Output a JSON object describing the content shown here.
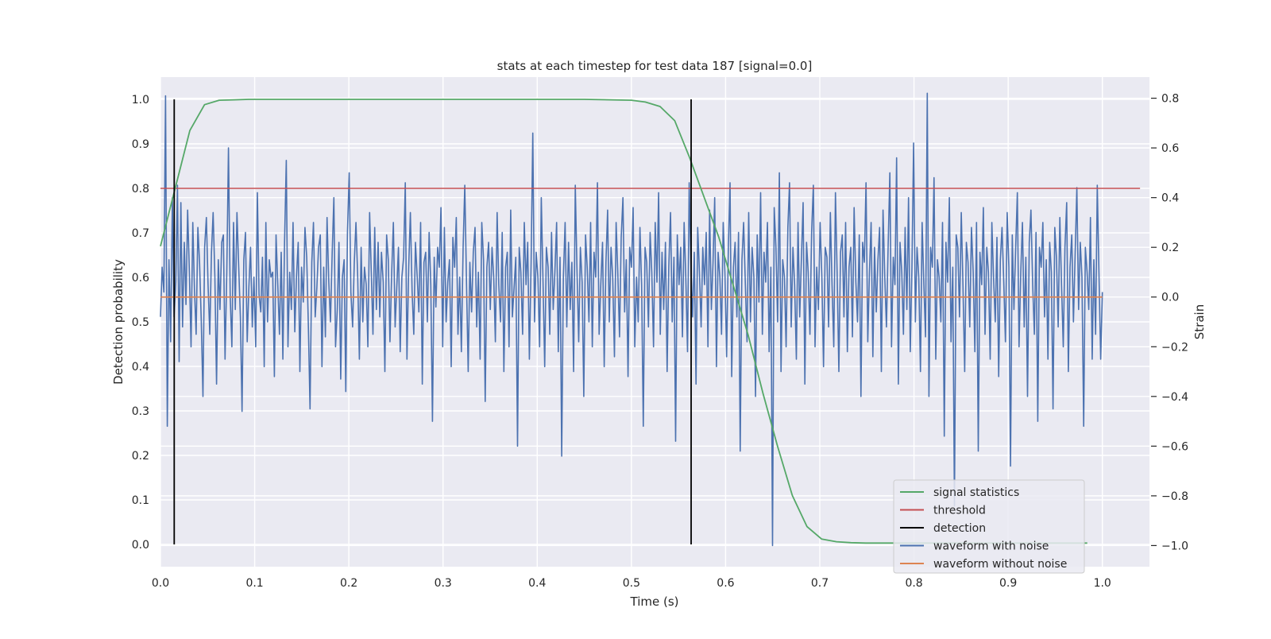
{
  "chart_data": {
    "type": "line",
    "title": "stats at each timestep for test data 187 [signal=0.0]",
    "xlabel": "Time (s)",
    "ylabel": "Detection probability",
    "ylabel_right": "Strain",
    "xlim": [
      0.0,
      1.05
    ],
    "ylim": [
      -0.05,
      1.05
    ],
    "ylim_right": [
      -1.085,
      0.885
    ],
    "xticks": [
      "0.0",
      "0.1",
      "0.2",
      "0.3",
      "0.4",
      "0.5",
      "0.6",
      "0.7",
      "0.8",
      "0.9",
      "1.0"
    ],
    "yticks": [
      "0.0",
      "0.1",
      "0.2",
      "0.3",
      "0.4",
      "0.5",
      "0.6",
      "0.7",
      "0.8",
      "0.9",
      "1.0"
    ],
    "yticks_right": [
      "−1.0",
      "−0.8",
      "−0.6",
      "−0.4",
      "−0.2",
      "0.0",
      "0.2",
      "0.4",
      "0.6",
      "0.8"
    ],
    "grid": true,
    "background": "#eaeaf2",
    "legend_position": "lower-right",
    "series": [
      {
        "name": "signal statistics",
        "color": "#55a868",
        "axis": "left",
        "x": [
          0.0,
          0.0156,
          0.0312,
          0.0468,
          0.0624,
          0.078,
          0.0936,
          0.15,
          0.3,
          0.45,
          0.5,
          0.5148,
          0.5304,
          0.546,
          0.5616,
          0.5772,
          0.5928,
          0.6084,
          0.624,
          0.6396,
          0.6552,
          0.6708,
          0.6864,
          0.702,
          0.7176,
          0.7332,
          0.7488,
          0.78,
          0.9,
          0.984
        ],
        "y": [
          0.67,
          0.8,
          0.93,
          0.988,
          0.998,
          0.999,
          1.0,
          1.0,
          1.0,
          1.0,
          0.998,
          0.994,
          0.984,
          0.952,
          0.87,
          0.78,
          0.69,
          0.58,
          0.47,
          0.34,
          0.22,
          0.11,
          0.04,
          0.012,
          0.006,
          0.004,
          0.003,
          0.003,
          0.003,
          0.003
        ]
      },
      {
        "name": "threshold",
        "color": "#c44e52",
        "axis": "left",
        "x": [
          0.0,
          1.04
        ],
        "y": [
          0.8,
          0.8
        ]
      },
      {
        "name": "detection",
        "color": "#000000",
        "axis": "left",
        "type": "vlines",
        "x": [
          0.0146,
          0.5634
        ],
        "y": [
          0.0,
          1.0
        ]
      },
      {
        "name": "waveform with noise",
        "color": "#4c72b0",
        "axis": "right",
        "x_range": [
          0.0,
          1.0
        ],
        "y": [
          -0.08,
          0.12,
          0.02,
          0.81,
          -0.52,
          0.15,
          -0.18,
          0.4,
          -0.08,
          0.06,
          0.45,
          -0.26,
          0.38,
          -0.12,
          0.22,
          -0.03,
          0.35,
          0.1,
          -0.2,
          0.3,
          0.03,
          -0.15,
          0.28,
          0.14,
          -0.1,
          -0.4,
          0.2,
          0.32,
          0.05,
          -0.15,
          0.18,
          0.34,
          0.08,
          -0.35,
          0.15,
          -0.05,
          0.22,
          0.25,
          -0.25,
          0.1,
          0.6,
          0.0,
          -0.2,
          0.3,
          -0.05,
          0.34,
          0.12,
          -0.08,
          -0.46,
          0.15,
          0.26,
          -0.18,
          0.04,
          0.2,
          -0.12,
          0.08,
          -0.2,
          0.42,
          0.01,
          -0.06,
          0.16,
          -0.28,
          0.3,
          -0.1,
          0.15,
          0.08,
          0.1,
          -0.32,
          0.25,
          0.05,
          -0.15,
          0.18,
          -0.25,
          0.22,
          0.55,
          -0.2,
          0.1,
          -0.05,
          0.3,
          -0.14,
          0.08,
          0.22,
          -0.3,
          0.12,
          -0.02,
          0.28,
          0.16,
          -0.12,
          -0.45,
          0.14,
          0.3,
          -0.08,
          0.04,
          0.2,
          0.25,
          -0.28,
          0.12,
          -0.16,
          0.32,
          0.06,
          -0.1,
          0.18,
          0.4,
          -0.2,
          -0.05,
          0.22,
          -0.33,
          0.08,
          0.15,
          -0.38,
          0.26,
          0.5,
          0.02,
          -0.12,
          0.14,
          0.3,
          0.08,
          -0.25,
          0.2,
          -0.1,
          0.12,
          0.05,
          -0.2,
          0.34,
          0.1,
          -0.15,
          0.28,
          -0.05,
          0.22,
          -0.08,
          0.18,
          0.06,
          -0.3,
          0.25,
          0.15,
          -0.18,
          0.1,
          0.3,
          -0.12,
          0.04,
          0.2,
          -0.22,
          0.08,
          0.16,
          0.46,
          -0.25,
          0.12,
          0.34,
          0.02,
          -0.15,
          0.22,
          0.08,
          -0.06,
          0.3,
          -0.35,
          0.14,
          0.18,
          -0.1,
          0.26,
          0.05,
          -0.5,
          0.16,
          -0.04,
          0.2,
          0.12,
          0.36,
          -0.2,
          0.28,
          -0.1,
          0.06,
          0.15,
          -0.28,
          0.24,
          0.12,
          0.32,
          -0.15,
          0.08,
          -0.22,
          0.2,
          0.45,
          0.05,
          -0.3,
          0.14,
          -0.06,
          0.18,
          0.28,
          -0.12,
          0.1,
          -0.25,
          0.3,
          0.15,
          -0.42,
          0.12,
          0.22,
          -0.05,
          0.2,
          0.08,
          -0.18,
          0.34,
          0.05,
          -0.1,
          0.26,
          -0.3,
          0.12,
          0.18,
          -0.2,
          0.35,
          -0.08,
          0.04,
          0.16,
          -0.6,
          0.2,
          0.1,
          -0.15,
          0.3,
          0.05,
          0.22,
          -0.25,
          0.14,
          0.66,
          -0.1,
          0.18,
          0.08,
          -0.2,
          0.4,
          0.06,
          -0.28,
          0.2,
          0.12,
          -0.15,
          0.26,
          -0.05,
          0.1,
          0.3,
          -0.22,
          0.16,
          -0.64,
          0.08,
          0.3,
          -0.12,
          0.22,
          -0.05,
          0.14,
          -0.3,
          0.45,
          0.1,
          -0.18,
          0.2,
          0.06,
          -0.4,
          0.25,
          0.12,
          -0.1,
          0.3,
          -0.2,
          0.18,
          0.08,
          0.46,
          -0.15,
          0.05,
          0.22,
          -0.28,
          0.14,
          0.35,
          -0.1,
          0.2,
          0.08,
          -0.24,
          0.3,
          0.1,
          -0.16,
          0.24,
          0.4,
          -0.06,
          0.15,
          -0.32,
          0.2,
          0.12,
          0.36,
          -0.2,
          0.08,
          -0.1,
          0.28,
          0.05,
          -0.52,
          0.2,
          0.14,
          -0.12,
          0.26,
          0.1,
          -0.2,
          0.3,
          0.06,
          0.42,
          -0.15,
          0.18,
          -0.05,
          0.22,
          -0.3,
          0.12,
          0.34,
          -0.1,
          0.16,
          -0.58,
          0.25,
          0.05,
          0.2,
          -0.16,
          0.3,
          0.08,
          -0.22,
          0.46,
          0.12,
          -0.08,
          0.18,
          -0.35,
          0.28,
          0.1,
          -0.12,
          0.2,
          0.05,
          0.26,
          -0.2,
          0.35,
          -0.05,
          0.14,
          0.4,
          -0.28,
          0.18,
          0.08,
          -0.15,
          0.3,
          0.1,
          -0.24,
          0.2,
          0.46,
          -0.32,
          0.12,
          0.22,
          -0.08,
          0.26,
          -0.62,
          0.15,
          0.3,
          0.05,
          -0.18,
          0.34,
          -0.1,
          0.2,
          0.08,
          -0.4,
          0.25,
          -0.02,
          0.42,
          -0.15,
          0.18,
          0.06,
          0.3,
          -0.22,
          0.12,
          -1.0,
          0.36,
          0.2,
          -0.1,
          0.5,
          -0.3,
          0.15,
          0.08,
          -0.2,
          0.28,
          0.46,
          -0.12,
          0.2,
          0.05,
          -0.25,
          0.3,
          -0.08,
          0.16,
          0.38,
          -0.35,
          0.22,
          0.1,
          -0.15,
          0.26,
          0.45,
          -0.2,
          0.12,
          -0.05,
          0.3,
          0.08,
          -0.28,
          0.2,
          0.16,
          -0.12,
          0.34,
          0.05,
          -0.2,
          0.42,
          0.1,
          -0.3,
          0.18,
          0.25,
          -0.08,
          0.3,
          -0.22,
          0.12,
          0.2,
          -0.16,
          0.36,
          0.06,
          -0.1,
          0.25,
          -0.4,
          0.22,
          0.14,
          0.46,
          -0.18,
          0.1,
          0.3,
          -0.24,
          0.2,
          -0.06,
          0.15,
          0.28,
          -0.3,
          0.35,
          0.08,
          -0.12,
          0.2,
          0.5,
          -0.2,
          0.16,
          0.05,
          0.56,
          -0.35,
          0.22,
          0.1,
          -0.15,
          0.28,
          -0.05,
          0.4,
          -0.22,
          0.12,
          0.62,
          -0.1,
          0.2,
          0.08,
          -0.3,
          0.3,
          0.05,
          -0.16,
          0.82,
          -0.4,
          0.2,
          0.12,
          0.48,
          -0.25,
          0.15,
          0.08,
          -0.1,
          0.3,
          -0.56,
          0.22,
          0.06,
          0.4,
          -0.18,
          0.12,
          -0.84,
          0.25,
          0.2,
          -0.08,
          0.34,
          0.05,
          -0.3,
          0.22,
          0.14,
          -0.12,
          0.28,
          0.1,
          -0.22,
          0.3,
          -0.62,
          0.18,
          0.05,
          0.36,
          -0.15,
          0.2,
          0.1,
          -0.25,
          0.3,
          0.08,
          -0.1,
          0.24,
          -0.32,
          0.15,
          0.28,
          0.06,
          -0.18,
          0.34,
          0.12,
          -0.68,
          0.25,
          -0.05,
          0.2,
          0.42,
          -0.2,
          0.1,
          0.3,
          -0.12,
          0.16,
          -0.4,
          0.22,
          0.35,
          0.05,
          -0.15,
          0.26,
          -0.5,
          0.2,
          0.12,
          0.3,
          -0.08,
          0.15,
          -0.25,
          0.22,
          0.1,
          -0.45,
          0.28,
          0.16,
          -0.12,
          0.32,
          0.05,
          -0.2,
          0.2,
          0.38,
          -0.3,
          0.12,
          0.25,
          -0.1,
          0.18,
          0.44,
          -0.05,
          0.22,
          0.08,
          -0.52,
          0.2,
          0.1,
          -0.05,
          0.32,
          -0.25,
          0.15,
          -0.15,
          0.45,
          0.1,
          -0.25,
          0.02
        ]
      },
      {
        "name": "waveform without noise",
        "color": "#dd8452",
        "axis": "right",
        "x": [
          0.0,
          1.0
        ],
        "y": [
          0.0,
          0.0
        ]
      }
    ]
  }
}
